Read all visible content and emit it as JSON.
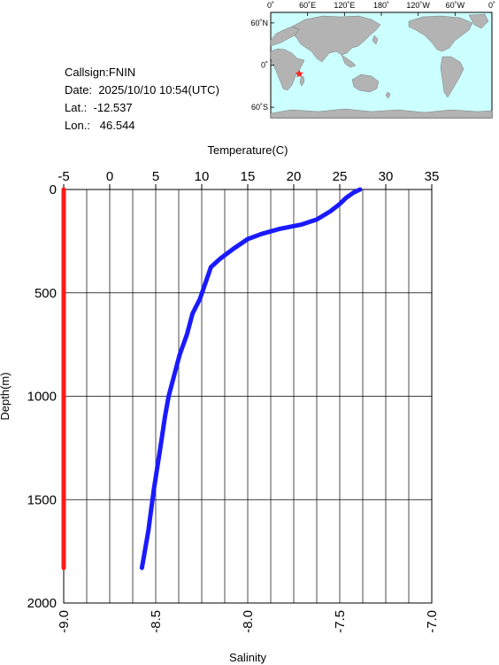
{
  "station": {
    "callsign_label": "Callsign:",
    "callsign": "FNIN",
    "date_label": "Date:",
    "date": "2025/10/10 10:54(UTC)",
    "lat_label": "Lat.:",
    "lat": "-12.537",
    "lon_label": "Lon.:",
    "lon": "46.544"
  },
  "map": {
    "lon_labels": [
      "0˚",
      "60˚E",
      "120˚E",
      "180˚",
      "120˚W",
      "60˚W",
      "0˚"
    ],
    "lat_labels": [
      "60˚N",
      "0˚",
      "60˚S"
    ],
    "ocean_color": "#ccffff",
    "land_color": "#b3b3b3",
    "marker_color": "#ff2020",
    "marker": {
      "lon": 46.544,
      "lat": -12.537
    }
  },
  "chart_data": {
    "type": "line",
    "ylabel": "Depth(m)",
    "ylim": [
      2000,
      0
    ],
    "yticks": [
      "0",
      "500",
      "1000",
      "1500",
      "2000"
    ],
    "x_top": {
      "label": "Temperature(C)",
      "range": [
        -5,
        35
      ],
      "ticks": [
        "-5",
        "0",
        "5",
        "10",
        "15",
        "20",
        "25",
        "30",
        "35"
      ]
    },
    "x_bottom": {
      "label": "Salinity",
      "range": [
        -9.0,
        -7.0
      ],
      "ticks": [
        "-9.0",
        "-8.5",
        "-8.0",
        "-7.5",
        "-7.0"
      ]
    },
    "grid": true,
    "series": [
      {
        "axis": "top",
        "color": "#1a1aff",
        "points": [
          [
            27.2,
            0
          ],
          [
            26.5,
            15
          ],
          [
            25.7,
            40
          ],
          [
            25.0,
            70
          ],
          [
            24.0,
            105
          ],
          [
            22.5,
            145
          ],
          [
            20.8,
            170
          ],
          [
            18.5,
            190
          ],
          [
            16.5,
            215
          ],
          [
            15.0,
            240
          ],
          [
            13.5,
            285
          ],
          [
            12.0,
            335
          ],
          [
            11.0,
            375
          ],
          [
            10.5,
            440
          ],
          [
            9.8,
            530
          ],
          [
            9.0,
            600
          ],
          [
            8.4,
            700
          ],
          [
            7.6,
            800
          ],
          [
            7.0,
            900
          ],
          [
            6.4,
            1000
          ],
          [
            6.0,
            1100
          ],
          [
            5.5,
            1250
          ],
          [
            4.8,
            1450
          ],
          [
            4.2,
            1650
          ],
          [
            3.5,
            1830
          ]
        ]
      },
      {
        "axis": "bottom",
        "color": "#ff1a1a",
        "points": [
          [
            -9.0,
            0
          ],
          [
            -9.0,
            1830
          ]
        ]
      }
    ]
  }
}
